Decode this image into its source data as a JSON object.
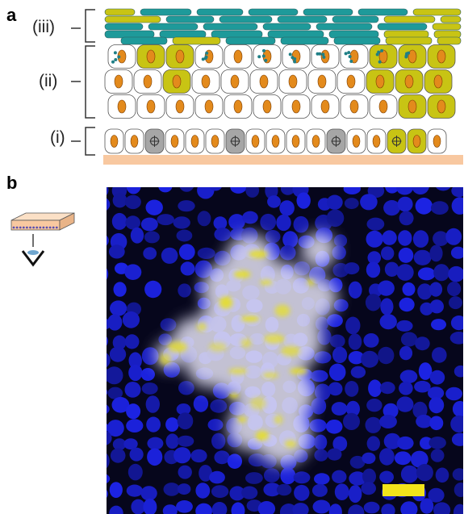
{
  "panel_a": {
    "letter": "a",
    "layer_labels": {
      "iii": "(iii)",
      "ii": "(ii)",
      "i": "(i)"
    },
    "colors": {
      "membrane_yellow": "#c8c414",
      "membrane_teal": "#1e9a9a",
      "nucleus_orange": "#e38a1c",
      "granule_teal": "#1f7f86",
      "basement_membrane": "#f8c8a0",
      "dividing_cell_gray": "#a6a6a6"
    }
  },
  "panel_b": {
    "letter": "b",
    "colors": {
      "nuclei_blue": "#2d35e8",
      "background": "#06061c",
      "clone_white": "#e4e2f4",
      "clone_yellow": "#e8e020",
      "scale_bar": "#f2e41a",
      "tissue_block": "#f8c8a0"
    }
  }
}
